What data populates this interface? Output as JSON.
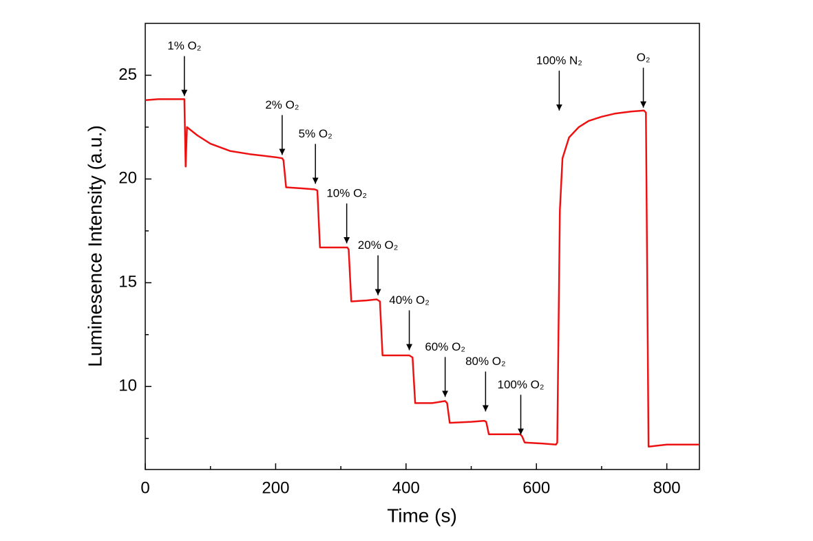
{
  "chart_data": {
    "type": "line",
    "xlabel": "Time (s)",
    "ylabel": "Luminesence Intensity (a.u.)",
    "color": "#ee1111",
    "x": [
      0,
      20,
      40,
      60,
      62,
      64,
      70,
      80,
      100,
      130,
      160,
      200,
      210,
      212,
      216,
      240,
      260,
      264,
      268,
      290,
      310,
      312,
      316,
      340,
      355,
      360,
      364,
      390,
      405,
      410,
      414,
      440,
      460,
      463,
      467,
      500,
      520,
      523,
      527,
      550,
      575,
      578,
      582,
      610,
      630,
      632,
      636,
      640,
      650,
      665,
      680,
      700,
      720,
      745,
      765,
      768,
      772,
      800,
      850
    ],
    "values": [
      23.8,
      23.85,
      23.85,
      23.85,
      20.6,
      22.5,
      22.35,
      22.1,
      21.7,
      21.35,
      21.2,
      21.05,
      21.0,
      20.9,
      19.6,
      19.55,
      19.5,
      19.45,
      16.7,
      16.7,
      16.7,
      16.6,
      14.1,
      14.15,
      14.2,
      14.1,
      11.5,
      11.5,
      11.5,
      11.4,
      9.2,
      9.2,
      9.3,
      9.2,
      8.25,
      8.3,
      8.35,
      8.3,
      7.7,
      7.7,
      7.7,
      7.6,
      7.3,
      7.25,
      7.2,
      7.3,
      18.5,
      21.0,
      22.0,
      22.5,
      22.8,
      23.0,
      23.15,
      23.25,
      23.3,
      23.2,
      7.1,
      7.2,
      7.2
    ],
    "xlim": [
      0,
      850
    ],
    "ylim": [
      6,
      27.5
    ],
    "xticks": [
      0,
      200,
      400,
      600,
      800
    ],
    "yticks": [
      10,
      15,
      20,
      25
    ],
    "xminorticks": [
      100,
      300,
      500,
      700
    ],
    "yminorticks": [
      7.5,
      12.5,
      17.5,
      22.5
    ],
    "annotations": [
      {
        "text": "1% O₂",
        "x": 60,
        "y": 24.0
      },
      {
        "text": "2% O₂",
        "x": 210,
        "y": 21.16
      },
      {
        "text": "5% O₂",
        "x": 261,
        "y": 19.77
      },
      {
        "text": "10% O₂",
        "x": 309,
        "y": 16.9
      },
      {
        "text": "20% O₂",
        "x": 357,
        "y": 14.4
      },
      {
        "text": "40% O₂",
        "x": 405,
        "y": 11.75
      },
      {
        "text": "60% O₂",
        "x": 460,
        "y": 9.5
      },
      {
        "text": "80% O₂",
        "x": 522,
        "y": 8.8
      },
      {
        "text": "100% O₂",
        "x": 576,
        "y": 7.68
      },
      {
        "text": "100% N₂",
        "x": 635,
        "y": 23.3
      },
      {
        "text": "O₂",
        "x": 764,
        "y": 23.44
      }
    ]
  }
}
